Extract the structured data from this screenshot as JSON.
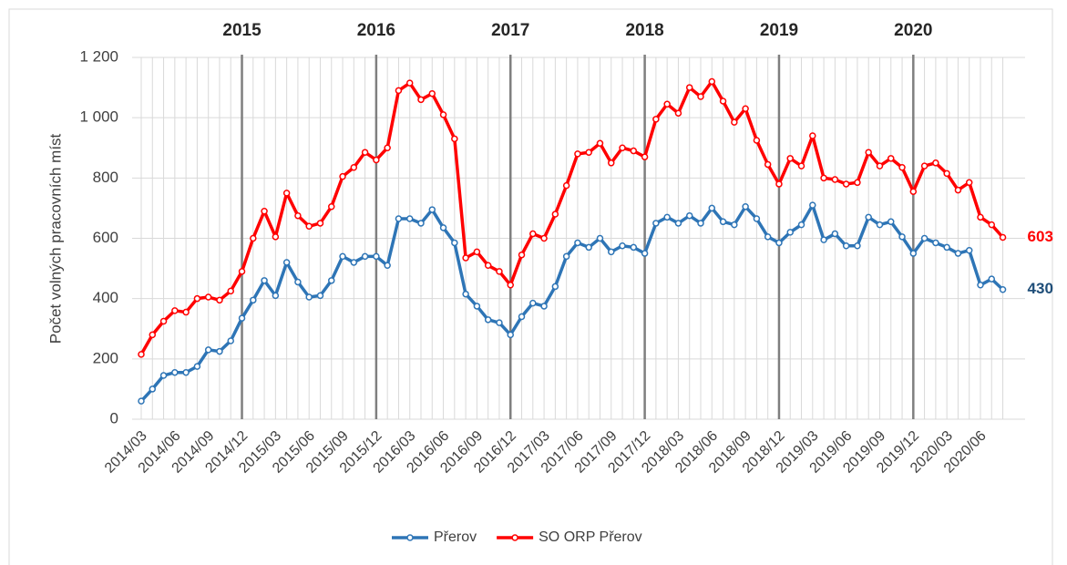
{
  "chart_data": {
    "type": "line",
    "y_label": "Počet volných pracovních míst",
    "categories": [
      "2014/03",
      null,
      null,
      "2014/06",
      null,
      null,
      "2014/09",
      null,
      null,
      "2014/12",
      null,
      null,
      "2015/03",
      null,
      null,
      "2015/06",
      null,
      null,
      "2015/09",
      null,
      null,
      "2015/12",
      null,
      null,
      "2016/03",
      null,
      null,
      "2016/06",
      null,
      null,
      "2016/09",
      null,
      null,
      "2016/12",
      null,
      null,
      "2017/03",
      null,
      null,
      "2017/06",
      null,
      null,
      "2017/09",
      null,
      null,
      "2017/12",
      null,
      null,
      "2018/03",
      null,
      null,
      "2018/06",
      null,
      null,
      "2018/09",
      null,
      null,
      "2018/12",
      null,
      null,
      "2019/03",
      null,
      null,
      "2019/06",
      null,
      null,
      "2019/09",
      null,
      null,
      "2019/12",
      null,
      null,
      "2020/03",
      null,
      null,
      "2020/06",
      null,
      null
    ],
    "series": [
      {
        "name": "Přerov",
        "color": "#2e75b6",
        "label_color": "#1f4e79",
        "values": [
          60,
          100,
          145,
          155,
          155,
          175,
          230,
          225,
          260,
          335,
          395,
          460,
          410,
          520,
          455,
          405,
          410,
          460,
          540,
          520,
          540,
          540,
          510,
          665,
          665,
          650,
          695,
          635,
          585,
          415,
          375,
          330,
          320,
          280,
          340,
          385,
          375,
          440,
          540,
          585,
          570,
          600,
          555,
          575,
          570,
          550,
          650,
          670,
          650,
          675,
          650,
          700,
          655,
          645,
          705,
          665,
          605,
          585,
          620,
          645,
          710,
          595,
          615,
          575,
          575,
          670,
          645,
          655,
          605,
          550,
          600,
          585,
          570,
          550,
          560,
          445,
          465,
          430
        ]
      },
      {
        "name": "SO ORP Přerov",
        "color": "#ff0000",
        "label_color": "#ff0000",
        "values": [
          215,
          280,
          325,
          360,
          355,
          400,
          405,
          395,
          425,
          490,
          600,
          690,
          605,
          750,
          675,
          640,
          650,
          705,
          805,
          835,
          885,
          860,
          900,
          1090,
          1115,
          1060,
          1080,
          1010,
          930,
          535,
          555,
          510,
          490,
          445,
          545,
          615,
          600,
          680,
          775,
          880,
          885,
          915,
          850,
          900,
          890,
          870,
          995,
          1045,
          1015,
          1100,
          1070,
          1120,
          1055,
          985,
          1030,
          925,
          845,
          780,
          865,
          840,
          940,
          800,
          795,
          780,
          785,
          885,
          840,
          865,
          835,
          755,
          840,
          850,
          815,
          760,
          785,
          670,
          645,
          603
        ]
      }
    ],
    "annotations": [
      {
        "text": "2015",
        "x": "2014/12"
      },
      {
        "text": "2016",
        "x": "2015/12"
      },
      {
        "text": "2017",
        "x": "2016/12"
      },
      {
        "text": "2018",
        "x": "2017/12"
      },
      {
        "text": "2019",
        "x": "2018/12"
      },
      {
        "text": "2020",
        "x": "2019/12"
      }
    ],
    "ylim": [
      0,
      1200
    ],
    "yticks": [
      0,
      200,
      400,
      600,
      800,
      {
        "value": 1000,
        "label": "1 000"
      },
      {
        "value": 1200,
        "label": "1 200"
      }
    ],
    "grid": true,
    "legend": "bottom"
  }
}
